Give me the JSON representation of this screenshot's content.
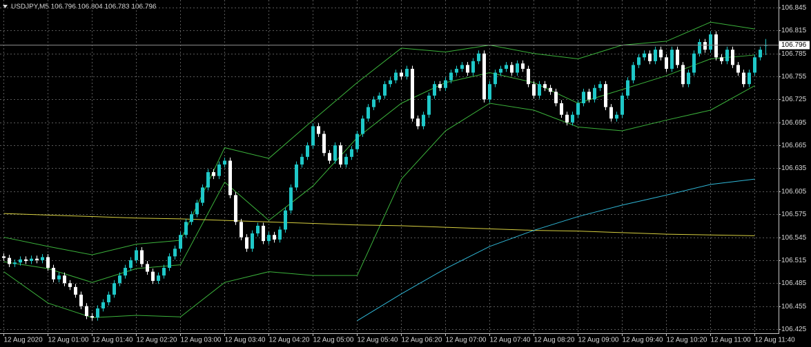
{
  "chart_data": {
    "type": "candlestick",
    "title": "USDJPY,M5  106.796 106.804 106.783 106.796",
    "categories": [
      "12 Aug 2020",
      null,
      null,
      null,
      null,
      null,
      null,
      null,
      "12 Aug 01:00",
      null,
      null,
      null,
      null,
      null,
      null,
      null,
      "12 Aug 01:40",
      null,
      null,
      null,
      null,
      null,
      null,
      null,
      "12 Aug 02:20",
      null,
      null,
      null,
      null,
      null,
      null,
      null,
      "12 Aug 03:00",
      null,
      null,
      null,
      null,
      null,
      null,
      null,
      "12 Aug 03:40",
      null,
      null,
      null,
      null,
      null,
      null,
      null,
      "12 Aug 04:20",
      null,
      null,
      null,
      null,
      null,
      null,
      null,
      "12 Aug 05:00",
      null,
      null,
      null,
      null,
      null,
      null,
      null,
      "12 Aug 05:40",
      null,
      null,
      null,
      null,
      null,
      null,
      null,
      "12 Aug 06:20",
      null,
      null,
      null,
      null,
      null,
      null,
      null,
      "12 Aug 07:00",
      null,
      null,
      null,
      null,
      null,
      null,
      null,
      "12 Aug 07:40",
      null,
      null,
      null,
      null,
      null,
      null,
      null,
      "12 Aug 08:20",
      null,
      null,
      null,
      null,
      null,
      null,
      null,
      "12 Aug 09:00",
      null,
      null,
      null,
      null,
      null,
      null,
      null,
      "12 Aug 09:40",
      null,
      null,
      null,
      null,
      null,
      null,
      null,
      "12 Aug 10:20",
      null,
      null,
      null,
      null,
      null,
      null,
      null,
      "12 Aug 11:00",
      null,
      null,
      null,
      null,
      null,
      null,
      null,
      "12 Aug 11:40",
      null,
      null
    ],
    "open": [
      106.52,
      106.518,
      106.51,
      106.512,
      106.516,
      106.514,
      106.517,
      106.515,
      106.519,
      106.505,
      106.49,
      106.495,
      106.485,
      106.48,
      106.47,
      106.455,
      106.442,
      106.44,
      106.452,
      106.46,
      106.47,
      106.485,
      106.495,
      106.505,
      106.515,
      106.528,
      106.51,
      106.5,
      106.488,
      106.495,
      106.505,
      106.52,
      106.53,
      106.548,
      106.565,
      106.575,
      106.59,
      106.61,
      106.63,
      106.625,
      106.64,
      106.645,
      106.6,
      106.565,
      106.545,
      106.53,
      106.55,
      106.56,
      106.54,
      106.548,
      106.542,
      106.555,
      106.58,
      106.61,
      106.64,
      106.65,
      106.665,
      106.69,
      106.68,
      106.655,
      106.645,
      106.665,
      106.64,
      106.65,
      106.66,
      106.68,
      106.7,
      106.715,
      106.725,
      106.73,
      106.745,
      106.75,
      106.76,
      106.755,
      106.765,
      106.7,
      106.69,
      106.705,
      106.73,
      106.745,
      106.74,
      106.75,
      106.76,
      106.765,
      106.77,
      106.76,
      106.775,
      106.785,
      106.725,
      106.745,
      106.76,
      106.765,
      106.77,
      106.76,
      106.772,
      106.765,
      106.745,
      106.73,
      106.745,
      106.74,
      106.735,
      106.72,
      106.705,
      106.695,
      106.705,
      106.72,
      106.735,
      106.725,
      106.74,
      106.745,
      106.715,
      106.7,
      106.705,
      106.73,
      106.75,
      106.77,
      106.78,
      106.785,
      106.775,
      106.79,
      106.78,
      106.765,
      106.79,
      106.77,
      106.745,
      106.76,
      106.785,
      106.8,
      106.79,
      106.81,
      106.78,
      106.775,
      106.79,
      106.77,
      106.76,
      106.745,
      106.76,
      106.78,
      106.796
    ],
    "high": [
      106.524,
      106.522,
      106.516,
      106.52,
      106.52,
      106.521,
      106.521,
      106.523,
      106.523,
      106.509,
      106.499,
      106.499,
      106.489,
      106.484,
      106.474,
      106.459,
      106.446,
      106.456,
      106.464,
      106.474,
      106.489,
      106.499,
      106.509,
      106.519,
      106.532,
      106.532,
      106.514,
      106.504,
      106.499,
      106.509,
      106.524,
      106.534,
      106.552,
      106.569,
      106.579,
      106.594,
      106.614,
      106.634,
      106.634,
      106.644,
      106.649,
      106.649,
      106.604,
      106.569,
      106.549,
      106.554,
      106.564,
      106.564,
      106.552,
      106.552,
      106.559,
      106.584,
      106.614,
      106.644,
      106.654,
      106.669,
      106.694,
      106.694,
      106.684,
      106.659,
      106.669,
      106.669,
      106.654,
      106.664,
      106.684,
      106.704,
      106.719,
      106.729,
      106.734,
      106.749,
      106.754,
      106.764,
      106.764,
      106.769,
      106.769,
      106.704,
      106.709,
      106.734,
      106.749,
      106.749,
      106.754,
      106.764,
      106.769,
      106.774,
      106.774,
      106.779,
      106.789,
      106.789,
      106.749,
      106.764,
      106.769,
      106.774,
      106.774,
      106.776,
      106.776,
      106.769,
      106.749,
      106.749,
      106.749,
      106.744,
      106.739,
      106.724,
      106.709,
      106.709,
      106.724,
      106.739,
      106.739,
      106.744,
      106.749,
      106.749,
      106.719,
      106.709,
      106.734,
      106.754,
      106.774,
      106.784,
      106.789,
      106.789,
      106.794,
      106.794,
      106.784,
      106.794,
      106.794,
      106.774,
      106.764,
      106.789,
      106.804,
      106.804,
      106.814,
      106.814,
      106.784,
      106.794,
      106.794,
      106.774,
      106.764,
      106.764,
      106.784,
      106.794,
      106.804
    ],
    "low": [
      106.514,
      106.506,
      106.506,
      106.508,
      106.51,
      106.51,
      106.511,
      106.511,
      106.501,
      106.486,
      106.486,
      106.481,
      106.476,
      106.466,
      106.451,
      106.438,
      106.436,
      106.436,
      106.448,
      106.456,
      106.466,
      106.481,
      106.491,
      106.501,
      106.511,
      106.506,
      106.496,
      106.484,
      106.484,
      106.491,
      106.501,
      106.516,
      106.526,
      106.544,
      106.561,
      106.571,
      106.586,
      106.606,
      106.621,
      106.621,
      106.636,
      106.596,
      106.561,
      106.541,
      106.526,
      106.526,
      106.546,
      106.536,
      106.536,
      106.538,
      106.538,
      106.551,
      106.576,
      106.606,
      106.636,
      106.646,
      106.661,
      106.676,
      106.651,
      106.641,
      106.641,
      106.636,
      106.636,
      106.646,
      106.656,
      106.676,
      106.696,
      106.711,
      106.721,
      106.726,
      106.741,
      106.746,
      106.751,
      106.751,
      106.696,
      106.686,
      106.686,
      106.701,
      106.726,
      106.736,
      106.736,
      106.746,
      106.756,
      106.761,
      106.756,
      106.756,
      106.771,
      106.721,
      106.721,
      106.741,
      106.756,
      106.761,
      106.756,
      106.756,
      106.761,
      106.741,
      106.726,
      106.726,
      106.736,
      106.731,
      106.716,
      106.701,
      106.691,
      106.691,
      106.701,
      106.716,
      106.721,
      106.721,
      106.736,
      106.711,
      106.696,
      106.696,
      106.701,
      106.726,
      106.746,
      106.766,
      106.776,
      106.771,
      106.771,
      106.776,
      106.761,
      106.761,
      106.766,
      106.741,
      106.741,
      106.756,
      106.781,
      106.786,
      106.786,
      106.776,
      106.771,
      106.771,
      106.766,
      106.756,
      106.741,
      106.741,
      106.756,
      106.776,
      106.783
    ],
    "close": [
      106.518,
      106.51,
      106.512,
      106.516,
      106.514,
      106.517,
      106.515,
      106.519,
      106.505,
      106.49,
      106.495,
      106.485,
      106.48,
      106.47,
      106.455,
      106.442,
      106.44,
      106.452,
      106.46,
      106.47,
      106.485,
      106.495,
      106.505,
      106.515,
      106.528,
      106.51,
      106.5,
      106.488,
      106.495,
      106.505,
      106.52,
      106.53,
      106.548,
      106.565,
      106.575,
      106.59,
      106.61,
      106.63,
      106.625,
      106.64,
      106.645,
      106.6,
      106.565,
      106.545,
      106.53,
      106.55,
      106.56,
      106.54,
      106.548,
      106.542,
      106.555,
      106.58,
      106.61,
      106.64,
      106.65,
      106.665,
      106.69,
      106.68,
      106.655,
      106.645,
      106.665,
      106.64,
      106.65,
      106.66,
      106.68,
      106.7,
      106.715,
      106.725,
      106.73,
      106.745,
      106.75,
      106.76,
      106.755,
      106.765,
      106.7,
      106.69,
      106.705,
      106.73,
      106.745,
      106.74,
      106.75,
      106.76,
      106.765,
      106.77,
      106.76,
      106.775,
      106.785,
      106.725,
      106.745,
      106.76,
      106.765,
      106.77,
      106.76,
      106.772,
      106.765,
      106.745,
      106.73,
      106.745,
      106.74,
      106.735,
      106.72,
      106.705,
      106.695,
      106.705,
      106.72,
      106.735,
      106.725,
      106.74,
      106.745,
      106.715,
      106.7,
      106.705,
      106.73,
      106.75,
      106.77,
      106.78,
      106.785,
      106.775,
      106.79,
      106.78,
      106.765,
      106.79,
      106.77,
      106.745,
      106.76,
      106.785,
      106.8,
      106.79,
      106.81,
      106.78,
      106.775,
      106.79,
      106.77,
      106.76,
      106.745,
      106.76,
      106.78,
      106.79,
      106.796
    ],
    "up_color": "#1fc8c8",
    "down_color": "#ffffff",
    "overlays": [
      {
        "color": "#3cb43c",
        "values": [
          106.545,
          106.533,
          106.522,
          106.536,
          106.541,
          106.662,
          106.648,
          106.698,
          106.747,
          106.792,
          106.787,
          106.796,
          106.785,
          106.778,
          106.796,
          106.801,
          106.826,
          106.817
        ]
      },
      {
        "color": "#3cb43c",
        "values": [
          106.513,
          106.504,
          106.486,
          106.504,
          106.509,
          106.617,
          106.567,
          106.612,
          106.675,
          106.72,
          106.747,
          106.76,
          106.747,
          106.72,
          106.738,
          106.756,
          106.778,
          106.783
        ]
      },
      {
        "color": "#3cb43c",
        "values": [
          106.5,
          106.459,
          106.44,
          106.443,
          106.441,
          106.486,
          106.5,
          106.495,
          106.495,
          106.621,
          106.684,
          106.72,
          106.711,
          106.689,
          106.684,
          106.698,
          106.711,
          106.743
        ]
      },
      {
        "color": "#d8d040",
        "values": [
          106.576,
          106.574,
          106.572,
          106.57,
          106.569,
          106.567,
          106.565,
          106.563,
          106.561,
          106.56,
          106.558,
          106.556,
          106.554,
          106.553,
          106.551,
          106.549,
          106.548,
          106.547
        ]
      },
      {
        "color": "#30b8d8",
        "values": [
          null,
          null,
          null,
          null,
          null,
          null,
          null,
          null,
          106.436,
          106.471,
          106.504,
          106.533,
          106.554,
          106.572,
          106.587,
          106.6,
          106.614,
          106.621
        ]
      }
    ],
    "current_price": 106.796,
    "ylim": [
      106.425,
      106.845
    ],
    "yticks": [
      106.845,
      106.815,
      106.785,
      106.755,
      106.725,
      106.695,
      106.665,
      106.635,
      106.605,
      106.575,
      106.545,
      106.515,
      106.485,
      106.455,
      106.425
    ],
    "grid": true
  }
}
